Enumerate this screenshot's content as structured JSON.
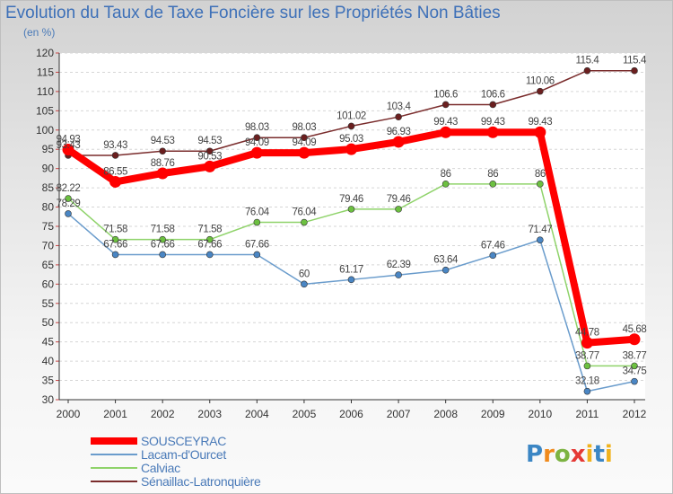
{
  "title": "Evolution du Taux de Taxe Foncière sur les Propriétés Non Bâties",
  "subtitle": "(en %)",
  "logo": {
    "p": "P",
    "r": "r",
    "o": "o",
    "x": "x",
    "i": "i",
    "t": "t",
    "i2": "i"
  },
  "chart_data": {
    "type": "line",
    "categories": [
      "2000",
      "2001",
      "2002",
      "2003",
      "2004",
      "2005",
      "2006",
      "2007",
      "2008",
      "2009",
      "2010",
      "2011",
      "2012"
    ],
    "ylim": [
      30,
      120
    ],
    "yticks": [
      30,
      35,
      40,
      45,
      50,
      55,
      60,
      65,
      70,
      75,
      80,
      85,
      90,
      95,
      100,
      105,
      110,
      115,
      120
    ],
    "series": [
      {
        "name": "Sénaillac-Latronquière",
        "color": "#7a2c2c",
        "point_color": "#6b1f1f",
        "values": [
          93.43,
          93.43,
          94.53,
          94.53,
          98.03,
          98.03,
          101.02,
          103.4,
          106.6,
          106.6,
          110.06,
          115.4,
          115.4
        ],
        "labels": [
          "93.43",
          "93.43",
          "94.53",
          "94.53",
          "98.03",
          "98.03",
          "101.02",
          "103.4",
          "106.6",
          "106.6",
          "110.06",
          "115.4",
          "115.4"
        ]
      },
      {
        "name": "Calviac",
        "color": "#8fd36a",
        "point_color": "#6cc040",
        "values": [
          82.22,
          71.58,
          71.58,
          71.58,
          76.04,
          76.04,
          79.46,
          79.46,
          86,
          86,
          86,
          38.77,
          38.77
        ],
        "labels": [
          "82.22",
          "71.58",
          "71.58",
          "71.58",
          "76.04",
          "76.04",
          "79.46",
          "79.46",
          "86",
          "86",
          "86",
          "38.77",
          "38.77"
        ]
      },
      {
        "name": "Lacam-d'Ourcet",
        "color": "#6a9ccc",
        "point_color": "#4a86c4",
        "values": [
          78.29,
          67.66,
          67.66,
          67.66,
          67.66,
          60,
          61.17,
          62.39,
          63.64,
          67.46,
          71.47,
          32.18,
          34.75
        ],
        "labels": [
          "78.29",
          "67.66",
          "67.66",
          "67.66",
          "67.66",
          "60",
          "61.17",
          "62.39",
          "63.64",
          "67.46",
          "71.47",
          "32.18",
          "34.75"
        ]
      },
      {
        "name": "SOUSCEYRAC",
        "color": "#ff0000",
        "point_color": "#ff0000",
        "values": [
          94.93,
          86.55,
          88.76,
          90.53,
          94.09,
          94.09,
          95.03,
          96.93,
          99.43,
          99.43,
          99.43,
          44.78,
          45.68
        ],
        "labels": [
          "94.93",
          "86.55",
          "88.76",
          "90.53",
          "94.09",
          "94.09",
          "95.03",
          "96.93",
          "99.43",
          "99.43",
          "99.43",
          "44.78",
          "45.68"
        ]
      }
    ],
    "legend": [
      "SOUSCEYRAC",
      "Lacam-d'Ourcet",
      "Calviac",
      "Sénaillac-Latronquière"
    ]
  }
}
